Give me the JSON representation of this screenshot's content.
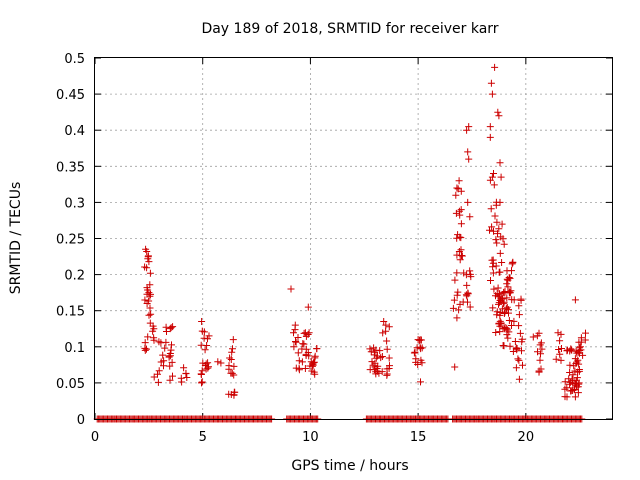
{
  "chart_data": {
    "type": "scatter",
    "title": "Day 189 of 2018, SRMTID for receiver karr",
    "xlabel": "GPS time / hours",
    "ylabel": "SRMTID / TECUs",
    "xlim": [
      0,
      24
    ],
    "ylim": [
      0,
      0.5
    ],
    "xticks": [
      0,
      5,
      10,
      15,
      20
    ],
    "yticks": [
      0,
      0.05,
      0.1,
      0.15,
      0.2,
      0.25,
      0.3,
      0.35,
      0.4,
      0.45,
      0.5
    ],
    "grid": true,
    "marker": "+",
    "color": "#cc0000",
    "zero_segments": [
      [
        0.1,
        8.2
      ],
      [
        8.9,
        10.4
      ],
      [
        12.6,
        16.4
      ],
      [
        16.6,
        22.6
      ]
    ],
    "clusters": [
      {
        "x_range": [
          2.3,
          2.6
        ],
        "y_range": [
          0.09,
          0.23
        ],
        "count": 20
      },
      {
        "x_range": [
          2.6,
          3.6
        ],
        "y_range": [
          0.05,
          0.13
        ],
        "count": 30
      },
      {
        "x_range": [
          4.0,
          4.4
        ],
        "y_range": [
          0.05,
          0.08
        ],
        "count": 6
      },
      {
        "x_range": [
          4.9,
          5.3
        ],
        "y_range": [
          0.05,
          0.13
        ],
        "count": 20
      },
      {
        "x_range": [
          5.6,
          5.9
        ],
        "y_range": [
          0.07,
          0.08
        ],
        "count": 2
      },
      {
        "x_range": [
          6.2,
          6.5
        ],
        "y_range": [
          0.03,
          0.11
        ],
        "count": 15
      },
      {
        "x_range": [
          9.2,
          9.7
        ],
        "y_range": [
          0.05,
          0.13
        ],
        "count": 15
      },
      {
        "x_range": [
          9.7,
          10.3
        ],
        "y_range": [
          0.06,
          0.12
        ],
        "count": 25
      },
      {
        "x_range": [
          12.7,
          13.2
        ],
        "y_range": [
          0.06,
          0.1
        ],
        "count": 20
      },
      {
        "x_range": [
          13.2,
          13.7
        ],
        "y_range": [
          0.05,
          0.13
        ],
        "count": 15
      },
      {
        "x_range": [
          14.8,
          15.2
        ],
        "y_range": [
          0.05,
          0.11
        ],
        "count": 15
      },
      {
        "x_range": [
          16.6,
          17.1
        ],
        "y_range": [
          0.14,
          0.32
        ],
        "count": 25
      },
      {
        "x_range": [
          17.1,
          17.5
        ],
        "y_range": [
          0.14,
          0.25
        ],
        "count": 12
      },
      {
        "x_range": [
          18.3,
          18.7
        ],
        "y_range": [
          0.14,
          0.34
        ],
        "count": 20
      },
      {
        "x_range": [
          18.6,
          19.0
        ],
        "y_range": [
          0.1,
          0.27
        ],
        "count": 40
      },
      {
        "x_range": [
          19.0,
          19.4
        ],
        "y_range": [
          0.08,
          0.22
        ],
        "count": 35
      },
      {
        "x_range": [
          19.4,
          19.9
        ],
        "y_range": [
          0.07,
          0.17
        ],
        "count": 20
      },
      {
        "x_range": [
          20.3,
          20.8
        ],
        "y_range": [
          0.06,
          0.12
        ],
        "count": 12
      },
      {
        "x_range": [
          21.4,
          21.8
        ],
        "y_range": [
          0.08,
          0.12
        ],
        "count": 8
      },
      {
        "x_range": [
          21.8,
          22.5
        ],
        "y_range": [
          0.03,
          0.1
        ],
        "count": 50
      },
      {
        "x_range": [
          22.4,
          22.8
        ],
        "y_range": [
          0.06,
          0.12
        ],
        "count": 10
      }
    ],
    "points": [
      [
        2.35,
        0.235
      ],
      [
        2.4,
        0.232
      ],
      [
        2.45,
        0.222
      ],
      [
        2.5,
        0.218
      ],
      [
        2.5,
        0.175
      ],
      [
        2.55,
        0.17
      ],
      [
        2.42,
        0.16
      ],
      [
        2.58,
        0.145
      ],
      [
        3.3,
        0.127
      ],
      [
        3.6,
        0.128
      ],
      [
        4.95,
        0.135
      ],
      [
        6.42,
        0.11
      ],
      [
        6.45,
        0.033
      ],
      [
        9.1,
        0.18
      ],
      [
        9.3,
        0.13
      ],
      [
        9.9,
        0.155
      ],
      [
        13.4,
        0.135
      ],
      [
        13.5,
        0.13
      ],
      [
        15.0,
        0.11
      ],
      [
        16.7,
        0.072
      ],
      [
        16.75,
        0.31
      ],
      [
        16.8,
        0.32
      ],
      [
        16.9,
        0.33
      ],
      [
        16.8,
        0.14
      ],
      [
        17.0,
        0.29
      ],
      [
        17.25,
        0.4
      ],
      [
        17.35,
        0.405
      ],
      [
        17.3,
        0.37
      ],
      [
        17.35,
        0.36
      ],
      [
        17.3,
        0.3
      ],
      [
        17.4,
        0.28
      ],
      [
        18.4,
        0.465
      ],
      [
        18.45,
        0.45
      ],
      [
        18.55,
        0.487
      ],
      [
        18.7,
        0.425
      ],
      [
        18.75,
        0.42
      ],
      [
        18.35,
        0.405
      ],
      [
        18.35,
        0.39
      ],
      [
        18.5,
        0.34
      ],
      [
        18.45,
        0.335
      ],
      [
        18.5,
        0.26
      ],
      [
        18.8,
        0.355
      ],
      [
        18.85,
        0.335
      ],
      [
        18.8,
        0.3
      ],
      [
        18.9,
        0.27
      ],
      [
        19.7,
        0.055
      ],
      [
        22.3,
        0.165
      ]
    ]
  }
}
